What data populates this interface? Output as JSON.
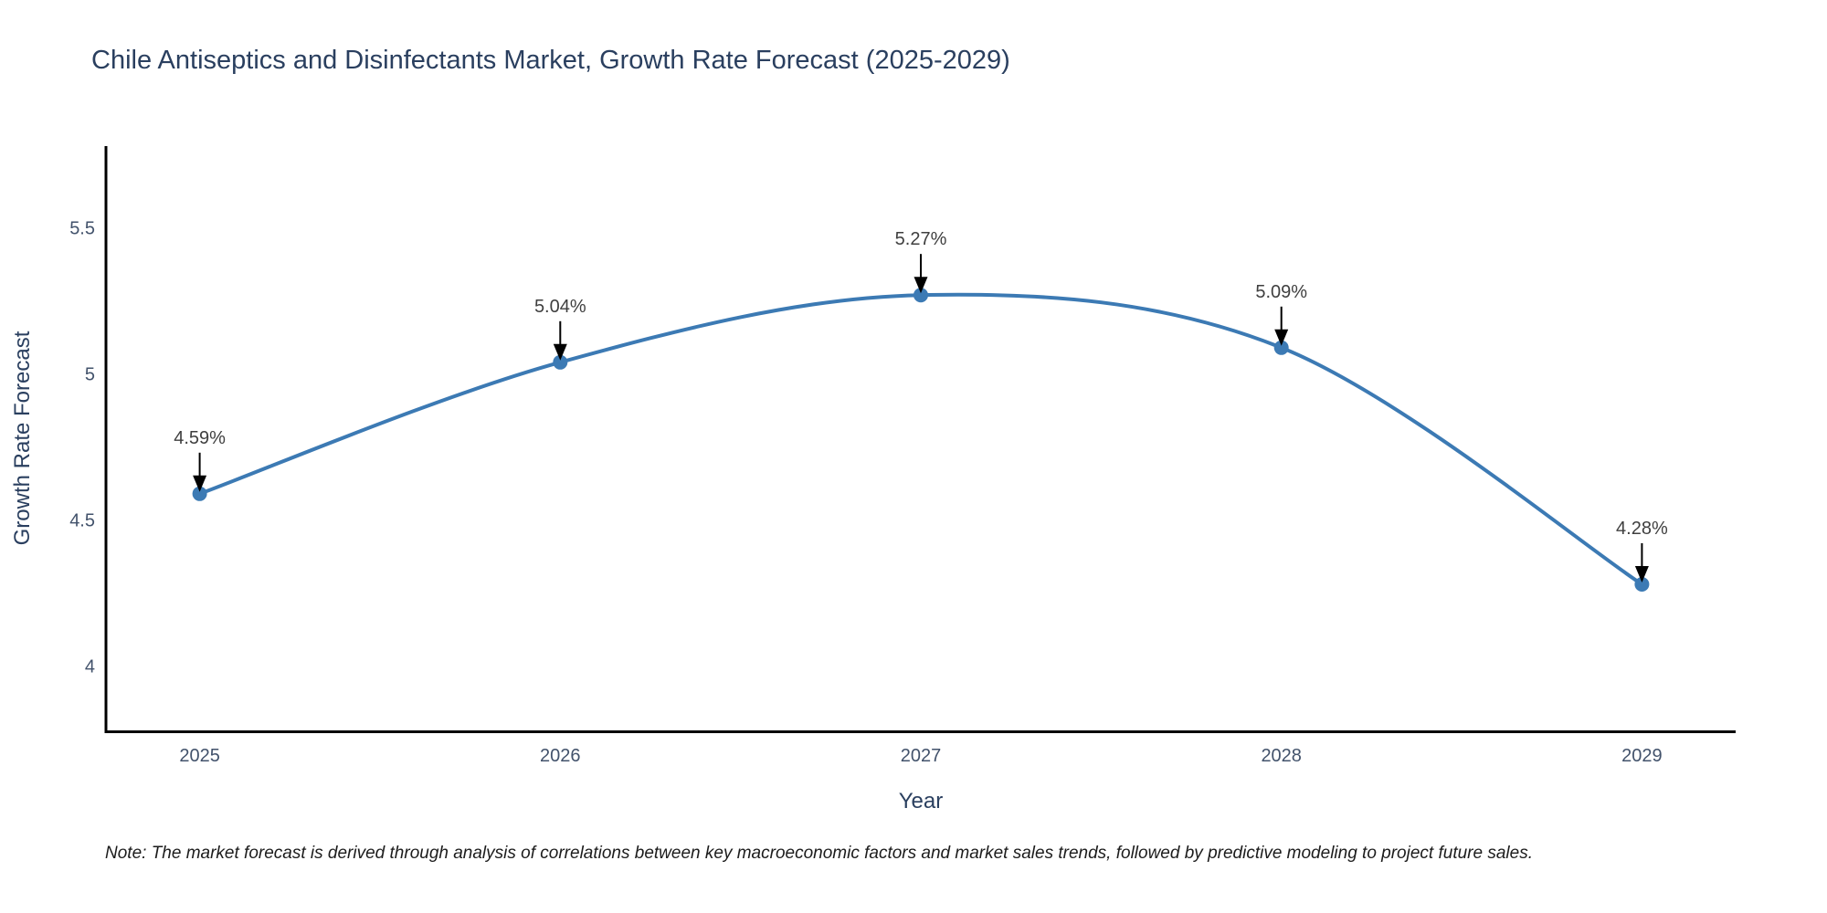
{
  "title": "Chile Antiseptics and Disinfectants Market, Growth Rate Forecast (2025-2029)",
  "note": "Note: The market forecast is derived through analysis of correlations between key macroeconomic factors and market sales trends, followed by predictive modeling to project future sales.",
  "chart_data": {
    "type": "line",
    "title": "Chile Antiseptics and Disinfectants Market, Growth Rate Forecast (2025-2029)",
    "xlabel": "Year",
    "ylabel": "Growth Rate Forecast",
    "x": [
      2025,
      2026,
      2027,
      2028,
      2029
    ],
    "series": [
      {
        "name": "Growth Rate Forecast",
        "values": [
          4.59,
          5.04,
          5.27,
          5.09,
          4.28
        ]
      }
    ],
    "point_labels": [
      "4.59%",
      "5.04%",
      "5.27%",
      "5.09%",
      "4.28%"
    ],
    "xtick_labels": [
      "2025",
      "2026",
      "2027",
      "2028",
      "2029"
    ],
    "yticks": [
      4,
      4.5,
      5,
      5.5
    ],
    "ytick_labels": [
      "4",
      "4.5",
      "5",
      "5.5"
    ],
    "xlim": [
      2024.74,
      2029.26
    ],
    "ylim": [
      3.78,
      5.78
    ],
    "grid": false,
    "legend": "none",
    "line_shape": "spline",
    "marker": "circle",
    "annotation_arrows": "down-to-point",
    "colors": {
      "line": "#3c7ab4",
      "marker": "#3c7ab4",
      "axis": "#000000",
      "tick_label": "#42526b",
      "title": "#2a3f5f",
      "annotation_text": "#3f3f3f",
      "arrow": "#000000",
      "background": "#ffffff"
    }
  }
}
